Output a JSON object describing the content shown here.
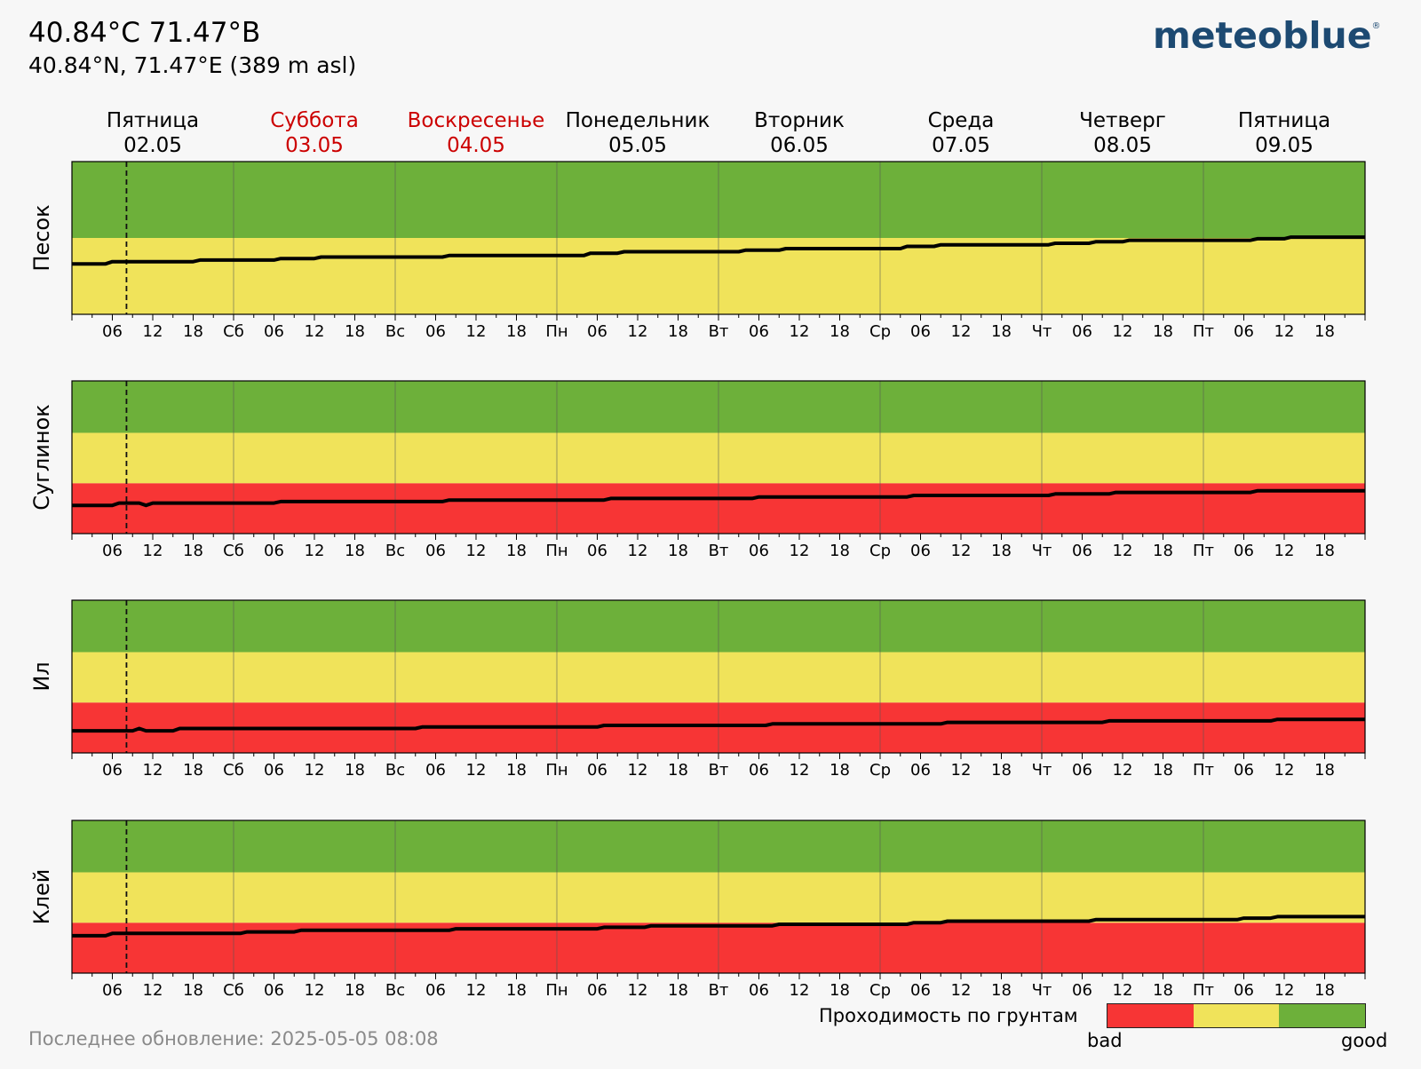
{
  "header": {
    "title": "40.84°C 71.47°В",
    "subtitle": "40.84°N, 71.47°E (389 m asl)",
    "logo": "meteoblue",
    "logo_mark": "®"
  },
  "footer": {
    "last_update": "Последнее обновление: 2025-05-05 08:08"
  },
  "legend": {
    "title": "Проходимость по грунтам",
    "low_label": "bad",
    "high_label": "good",
    "colors": [
      "#f73535",
      "#f0e35a",
      "#6db03a"
    ]
  },
  "chart_data": {
    "type": "area",
    "days": [
      {
        "name": "Пятница",
        "date": "02.05",
        "weekend": false
      },
      {
        "name": "Суббота",
        "date": "03.05",
        "weekend": true
      },
      {
        "name": "Воскресенье",
        "date": "04.05",
        "weekend": true
      },
      {
        "name": "Понедельник",
        "date": "05.05",
        "weekend": false
      },
      {
        "name": "Вторник",
        "date": "06.05",
        "weekend": false
      },
      {
        "name": "Среда",
        "date": "07.05",
        "weekend": false
      },
      {
        "name": "Четверг",
        "date": "08.05",
        "weekend": false
      },
      {
        "name": "Пятница",
        "date": "09.05",
        "weekend": false
      }
    ],
    "tick_labels": [
      "06",
      "12",
      "18",
      "Сб",
      "06",
      "12",
      "18",
      "Вс",
      "06",
      "12",
      "18",
      "Пн",
      "06",
      "12",
      "18",
      "Вт",
      "06",
      "12",
      "18",
      "Ср",
      "06",
      "12",
      "18",
      "Чт",
      "06",
      "12",
      "18",
      "Пт",
      "06",
      "12",
      "18"
    ],
    "x_range_hours": [
      0,
      192
    ],
    "now_hour": 8.1,
    "ylim": [
      0,
      1
    ],
    "band_colors": {
      "bad": "#f73535",
      "medium": "#f0e35a",
      "good": "#6db03a"
    },
    "weekend_color": "#cc0000",
    "panels": [
      {
        "label": "Песок",
        "bands": [
          [
            0.0,
            0.5,
            "medium"
          ],
          [
            0.5,
            1.0,
            "good"
          ]
        ],
        "line": [
          [
            0,
            0.33
          ],
          [
            5,
            0.33
          ],
          [
            6,
            0.345
          ],
          [
            18,
            0.345
          ],
          [
            19,
            0.355
          ],
          [
            30,
            0.355
          ],
          [
            31,
            0.365
          ],
          [
            36,
            0.365
          ],
          [
            37,
            0.375
          ],
          [
            55,
            0.375
          ],
          [
            56,
            0.385
          ],
          [
            76,
            0.385
          ],
          [
            77,
            0.4
          ],
          [
            81,
            0.4
          ],
          [
            82,
            0.41
          ],
          [
            99,
            0.41
          ],
          [
            100,
            0.42
          ],
          [
            105,
            0.42
          ],
          [
            106,
            0.43
          ],
          [
            123,
            0.43
          ],
          [
            124,
            0.445
          ],
          [
            128,
            0.445
          ],
          [
            129,
            0.455
          ],
          [
            145,
            0.455
          ],
          [
            146,
            0.465
          ],
          [
            151,
            0.465
          ],
          [
            152,
            0.475
          ],
          [
            156,
            0.475
          ],
          [
            157,
            0.485
          ],
          [
            175,
            0.485
          ],
          [
            176,
            0.495
          ],
          [
            180,
            0.495
          ],
          [
            181,
            0.505
          ],
          [
            192,
            0.505
          ]
        ]
      },
      {
        "label": "Суглинок",
        "bands": [
          [
            0.0,
            0.33,
            "bad"
          ],
          [
            0.33,
            0.66,
            "medium"
          ],
          [
            0.66,
            1.0,
            "good"
          ]
        ],
        "line": [
          [
            0,
            0.185
          ],
          [
            6,
            0.185
          ],
          [
            7,
            0.2
          ],
          [
            10,
            0.2
          ],
          [
            11,
            0.185
          ],
          [
            12,
            0.2
          ],
          [
            30,
            0.2
          ],
          [
            31,
            0.21
          ],
          [
            55,
            0.21
          ],
          [
            56,
            0.22
          ],
          [
            79,
            0.22
          ],
          [
            80,
            0.23
          ],
          [
            101,
            0.23
          ],
          [
            102,
            0.24
          ],
          [
            124,
            0.24
          ],
          [
            125,
            0.25
          ],
          [
            145,
            0.25
          ],
          [
            146,
            0.26
          ],
          [
            154,
            0.26
          ],
          [
            155,
            0.27
          ],
          [
            175,
            0.27
          ],
          [
            176,
            0.28
          ],
          [
            192,
            0.28
          ]
        ]
      },
      {
        "label": "Ил",
        "bands": [
          [
            0.0,
            0.33,
            "bad"
          ],
          [
            0.33,
            0.66,
            "medium"
          ],
          [
            0.66,
            1.0,
            "good"
          ]
        ],
        "line": [
          [
            0,
            0.145
          ],
          [
            9,
            0.145
          ],
          [
            10,
            0.16
          ],
          [
            11,
            0.145
          ],
          [
            15,
            0.145
          ],
          [
            16,
            0.16
          ],
          [
            51,
            0.16
          ],
          [
            52,
            0.17
          ],
          [
            78,
            0.17
          ],
          [
            79,
            0.18
          ],
          [
            103,
            0.18
          ],
          [
            104,
            0.19
          ],
          [
            129,
            0.19
          ],
          [
            130,
            0.2
          ],
          [
            153,
            0.2
          ],
          [
            154,
            0.21
          ],
          [
            178,
            0.21
          ],
          [
            179,
            0.22
          ],
          [
            192,
            0.22
          ]
        ]
      },
      {
        "label": "Клей",
        "bands": [
          [
            0.0,
            0.33,
            "bad"
          ],
          [
            0.33,
            0.66,
            "medium"
          ],
          [
            0.66,
            1.0,
            "good"
          ]
        ],
        "line": [
          [
            0,
            0.245
          ],
          [
            5,
            0.245
          ],
          [
            6,
            0.26
          ],
          [
            25,
            0.26
          ],
          [
            26,
            0.27
          ],
          [
            33,
            0.27
          ],
          [
            34,
            0.28
          ],
          [
            56,
            0.28
          ],
          [
            57,
            0.29
          ],
          [
            78,
            0.29
          ],
          [
            79,
            0.3
          ],
          [
            85,
            0.3
          ],
          [
            86,
            0.31
          ],
          [
            104,
            0.31
          ],
          [
            105,
            0.32
          ],
          [
            124,
            0.32
          ],
          [
            125,
            0.33
          ],
          [
            129,
            0.33
          ],
          [
            130,
            0.34
          ],
          [
            151,
            0.34
          ],
          [
            152,
            0.35
          ],
          [
            173,
            0.35
          ],
          [
            174,
            0.36
          ],
          [
            178,
            0.36
          ],
          [
            179,
            0.37
          ],
          [
            192,
            0.37
          ]
        ]
      }
    ]
  }
}
